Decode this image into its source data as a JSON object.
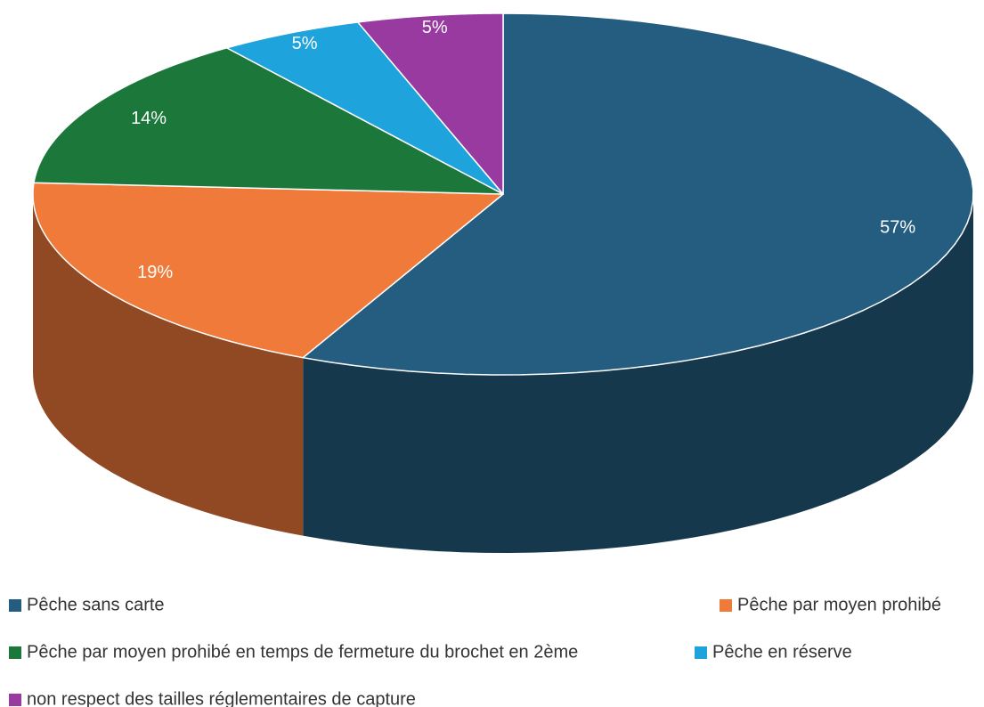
{
  "chart_data": {
    "type": "pie",
    "categories": [
      "Pêche sans carte",
      "Pêche par moyen prohibé",
      "Pêche par moyen prohibé en temps de fermeture du brochet en 2ème",
      "Pêche en réserve",
      "non respect des tailles réglementaires de capture"
    ],
    "values": [
      57,
      19,
      14,
      5,
      5
    ],
    "value_labels": [
      "57%",
      "19%",
      "14%",
      "5%",
      "5%"
    ],
    "colors": [
      "#245d7f",
      "#f07a3a",
      "#1c773a",
      "#1fa3dc",
      "#983aa0"
    ]
  }
}
